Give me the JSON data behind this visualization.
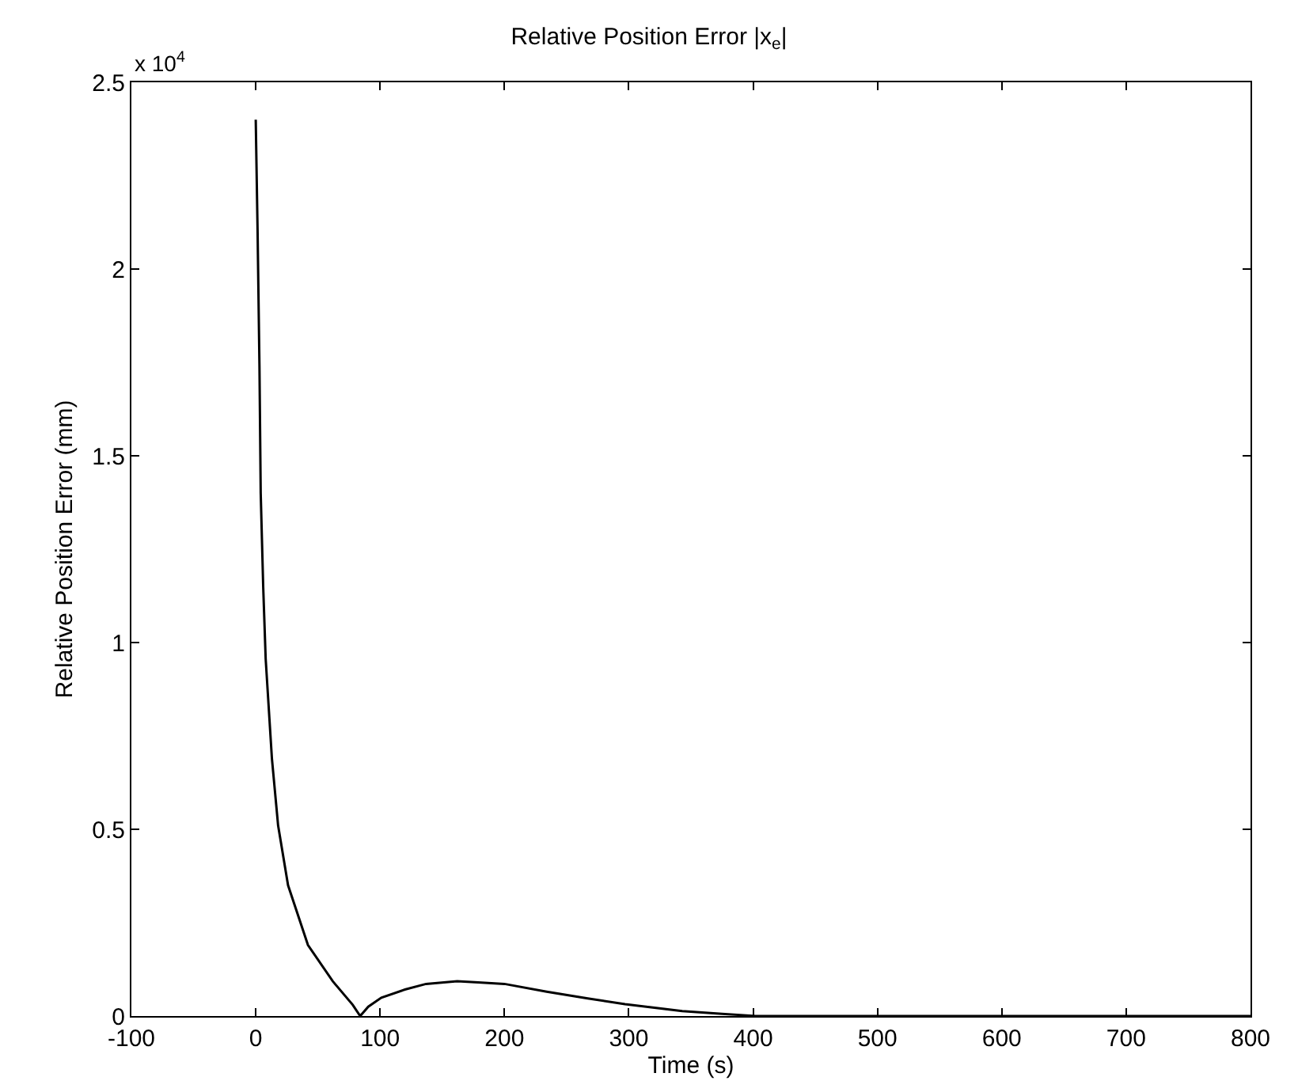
{
  "chart_data": {
    "type": "line",
    "title": "Relative Position Error |x$_{e}$|",
    "xlabel": "Time (s)",
    "ylabel": "Relative Position Error (mm)",
    "annotations": [
      "x 10$^{4}$"
    ],
    "x": [
      0,
      1.5,
      3,
      4,
      6,
      8,
      13,
      18,
      26,
      42,
      62,
      78,
      84,
      90.5,
      101,
      120,
      137,
      162,
      179,
      200,
      234,
      267,
      297,
      343,
      375,
      402,
      500,
      600,
      700,
      800
    ],
    "series": [
      {
        "color": "#000000",
        "values": [
          2.4,
          2.1,
          1.74,
          1.4,
          1.15,
          0.956,
          0.69,
          0.51,
          0.35,
          0.19,
          0.093,
          0.03,
          0,
          0.025,
          0.049,
          0.071,
          0.086,
          0.093,
          0.09,
          0.086,
          0.065,
          0.047,
          0.032,
          0.013,
          0.006,
          0,
          0,
          0,
          0,
          0
        ]
      }
    ],
    "xlim": [
      -100,
      800
    ],
    "xticks": [
      -100,
      0,
      100,
      200,
      300,
      400,
      500,
      600,
      700,
      800
    ],
    "ylim": [
      0,
      2.5
    ],
    "yticks": [
      0,
      0.5,
      1,
      1.5,
      2,
      2.5
    ],
    "marker": "none",
    "line_style": "solid"
  }
}
